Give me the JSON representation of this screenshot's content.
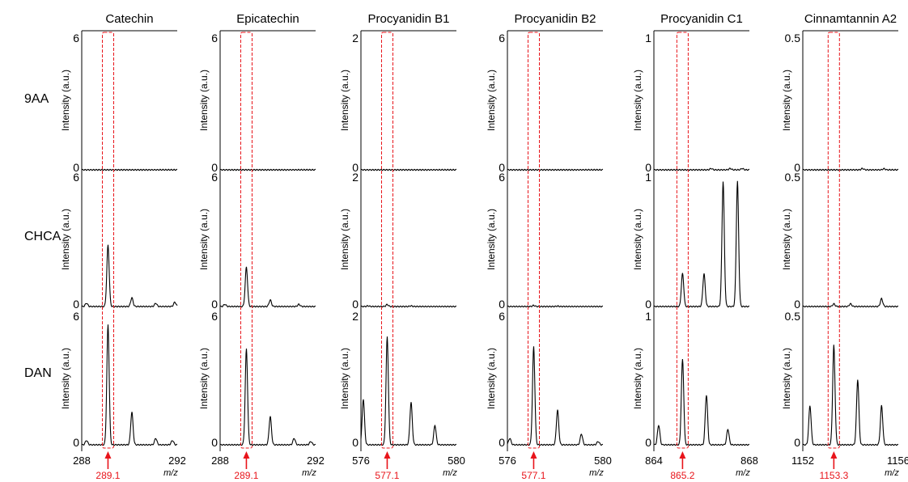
{
  "chart_data": {
    "type": "line",
    "ylabel": "Intensity (a.u.)",
    "xlabel": "m/z",
    "rows": [
      "9AA",
      "CHCA",
      "DAN"
    ],
    "highlight_color": "#e8141a",
    "panels": [
      {
        "compound": "Catechin",
        "xlim": [
          288,
          292
        ],
        "x_ticks": [
          "288",
          "292"
        ],
        "y_max_labels": [
          "6",
          "6",
          "6"
        ],
        "y_min_label": "0",
        "highlight_mz": 289.1,
        "highlight_label": "289.1",
        "series": [
          {
            "matrix": "9AA",
            "peaks": []
          },
          {
            "matrix": "CHCA",
            "peaks": [
              [
                289.1,
                2.8
              ],
              [
                290.1,
                0.4
              ],
              [
                291.1,
                0.15
              ],
              [
                291.9,
                0.2
              ],
              [
                288.2,
                0.15
              ]
            ]
          },
          {
            "matrix": "DAN",
            "peaks": [
              [
                289.1,
                5.5
              ],
              [
                290.1,
                1.5
              ],
              [
                291.1,
                0.3
              ],
              [
                291.8,
                0.2
              ],
              [
                288.2,
                0.2
              ]
            ]
          }
        ]
      },
      {
        "compound": "Epicatechin",
        "xlim": [
          288,
          292
        ],
        "x_ticks": [
          "288",
          "292"
        ],
        "y_max_labels": [
          "6",
          "6",
          "6"
        ],
        "y_min_label": "0",
        "highlight_mz": 289.1,
        "highlight_label": "289.1",
        "series": [
          {
            "matrix": "9AA",
            "peaks": []
          },
          {
            "matrix": "CHCA",
            "peaks": [
              [
                289.1,
                1.8
              ],
              [
                290.1,
                0.3
              ],
              [
                288.2,
                0.1
              ],
              [
                291.3,
                0.1
              ]
            ]
          },
          {
            "matrix": "DAN",
            "peaks": [
              [
                289.1,
                4.4
              ],
              [
                290.1,
                1.3
              ],
              [
                291.1,
                0.3
              ],
              [
                291.8,
                0.15
              ]
            ]
          }
        ]
      },
      {
        "compound": "Procyanidin B1",
        "xlim": [
          576,
          580
        ],
        "x_ticks": [
          "576",
          "580"
        ],
        "y_max_labels": [
          "2",
          "2",
          "2"
        ],
        "y_min_label": "0",
        "highlight_mz": 577.1,
        "highlight_label": "577.1",
        "series": [
          {
            "matrix": "9AA",
            "peaks": []
          },
          {
            "matrix": "CHCA",
            "peaks": [
              [
                577.1,
                0.03
              ],
              [
                576.3,
                0.01
              ],
              [
                578.1,
                0.01
              ]
            ]
          },
          {
            "matrix": "DAN",
            "peaks": [
              [
                576.1,
                0.7
              ],
              [
                577.1,
                1.65
              ],
              [
                578.1,
                0.65
              ],
              [
                579.1,
                0.3
              ]
            ]
          }
        ]
      },
      {
        "compound": "Procyanidin B2",
        "xlim": [
          576,
          580
        ],
        "x_ticks": [
          "576",
          "580"
        ],
        "y_max_labels": [
          "6",
          "6",
          "6"
        ],
        "y_min_label": "0",
        "highlight_mz": 577.1,
        "highlight_label": "577.1",
        "series": [
          {
            "matrix": "9AA",
            "peaks": []
          },
          {
            "matrix": "CHCA",
            "peaks": [
              [
                577.1,
                0.05
              ],
              [
                578.1,
                0.02
              ]
            ]
          },
          {
            "matrix": "DAN",
            "peaks": [
              [
                576.1,
                0.3
              ],
              [
                577.1,
                4.5
              ],
              [
                578.1,
                1.6
              ],
              [
                579.1,
                0.5
              ],
              [
                579.8,
                0.15
              ]
            ]
          }
        ]
      },
      {
        "compound": "Procyanidin C1",
        "xlim": [
          864,
          868
        ],
        "x_ticks": [
          "864",
          "868"
        ],
        "y_max_labels": [
          "1",
          "1",
          "1"
        ],
        "y_min_label": "0",
        "highlight_mz": 865.2,
        "highlight_label": "865.2",
        "series": [
          {
            "matrix": "9AA",
            "peaks": [
              [
                866.4,
                0.01
              ],
              [
                867.2,
                0.01
              ],
              [
                867.7,
                0.01
              ]
            ]
          },
          {
            "matrix": "CHCA",
            "peaks": [
              [
                865.2,
                0.25
              ],
              [
                866.1,
                0.25
              ],
              [
                866.9,
                0.95
              ],
              [
                867.5,
                0.95
              ]
            ]
          },
          {
            "matrix": "DAN",
            "peaks": [
              [
                864.2,
                0.15
              ],
              [
                865.2,
                0.65
              ],
              [
                866.2,
                0.38
              ],
              [
                867.1,
                0.12
              ]
            ]
          }
        ]
      },
      {
        "compound": "Cinnamtannin A2",
        "xlim": [
          1152,
          1156
        ],
        "x_ticks": [
          "1152",
          "1156"
        ],
        "y_max_labels": [
          "0.5",
          "0.5",
          "0.5"
        ],
        "y_min_label": "0",
        "highlight_mz": 1153.3,
        "highlight_label": "1153.3",
        "series": [
          {
            "matrix": "9AA",
            "peaks": [
              [
                1154.5,
                0.005
              ],
              [
                1155.4,
                0.004
              ]
            ]
          },
          {
            "matrix": "CHCA",
            "peaks": [
              [
                1153.3,
                0.01
              ],
              [
                1155.3,
                0.03
              ],
              [
                1154.0,
                0.01
              ]
            ]
          },
          {
            "matrix": "DAN",
            "peaks": [
              [
                1152.3,
                0.15
              ],
              [
                1153.3,
                0.38
              ],
              [
                1154.3,
                0.25
              ],
              [
                1155.3,
                0.15
              ]
            ]
          }
        ]
      }
    ]
  }
}
